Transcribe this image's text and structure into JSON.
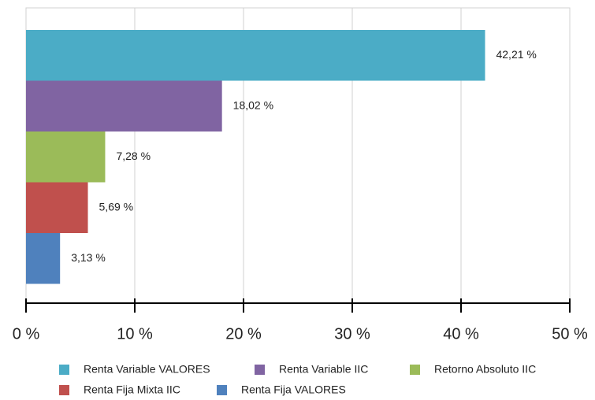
{
  "chart_data": {
    "type": "bar",
    "orientation": "horizontal",
    "series": [
      {
        "name": "Renta Variable VALORES",
        "color": "#4bacc6",
        "values": [
          42.21
        ],
        "value_labels": [
          "42,21 %"
        ]
      },
      {
        "name": "Renta Variable IIC",
        "color": "#8064a2",
        "values": [
          18.02
        ],
        "value_labels": [
          "18,02 %"
        ]
      },
      {
        "name": "Retorno Absoluto IIC",
        "color": "#9bbb59",
        "values": [
          7.28
        ],
        "value_labels": [
          "7,28 %"
        ]
      },
      {
        "name": "Renta Fija Mixta IIC",
        "color": "#c0504d",
        "values": [
          5.69
        ],
        "value_labels": [
          "5,69 %"
        ]
      },
      {
        "name": "Renta Fija VALORES",
        "color": "#4f81bd",
        "values": [
          3.13
        ],
        "value_labels": [
          "3,13 %"
        ]
      }
    ],
    "xlim": [
      0,
      50
    ],
    "xticks": [
      {
        "value": 0,
        "label": "0 %"
      },
      {
        "value": 10,
        "label": "10 %"
      },
      {
        "value": 20,
        "label": "20 %"
      },
      {
        "value": 30,
        "label": "30 %"
      },
      {
        "value": 40,
        "label": "40 %"
      },
      {
        "value": 50,
        "label": "50 %"
      }
    ],
    "grid": true,
    "legend": "bottom"
  }
}
